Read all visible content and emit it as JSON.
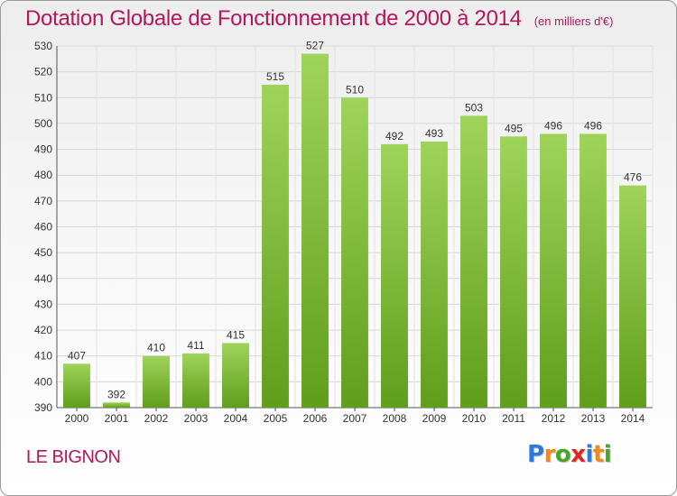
{
  "title": "Dotation Globale de Fonctionnement de 2000 à 2014",
  "subtitle": "(en milliers d'€)",
  "commune": "LE BIGNON",
  "logo": {
    "letters": [
      "P",
      "r",
      "o",
      "x",
      "i",
      "t",
      "i"
    ],
    "colors": [
      "#2e7bd6",
      "#f08a1c",
      "#4aa32a",
      "#e0261c",
      "#2e7bd6",
      "#f08a1c",
      "#4aa32a"
    ]
  },
  "colors": {
    "bar_top": "#9fd45a",
    "bar_bottom": "#5f9e1c",
    "title": "#b5175d"
  },
  "chart_data": {
    "type": "bar",
    "title": "Dotation Globale de Fonctionnement de 2000 à 2014",
    "subtitle": "(en milliers d'€)",
    "categories": [
      "2000",
      "2001",
      "2002",
      "2003",
      "2004",
      "2005",
      "2006",
      "2007",
      "2008",
      "2009",
      "2010",
      "2011",
      "2012",
      "2013",
      "2014"
    ],
    "values": [
      407,
      392,
      410,
      411,
      415,
      515,
      527,
      510,
      492,
      493,
      503,
      495,
      496,
      496,
      476
    ],
    "ylim": [
      390,
      530
    ],
    "yticks": [
      390,
      400,
      410,
      420,
      430,
      440,
      450,
      460,
      470,
      480,
      490,
      500,
      510,
      520,
      530
    ],
    "grid": true,
    "xlabel": "",
    "ylabel": ""
  }
}
